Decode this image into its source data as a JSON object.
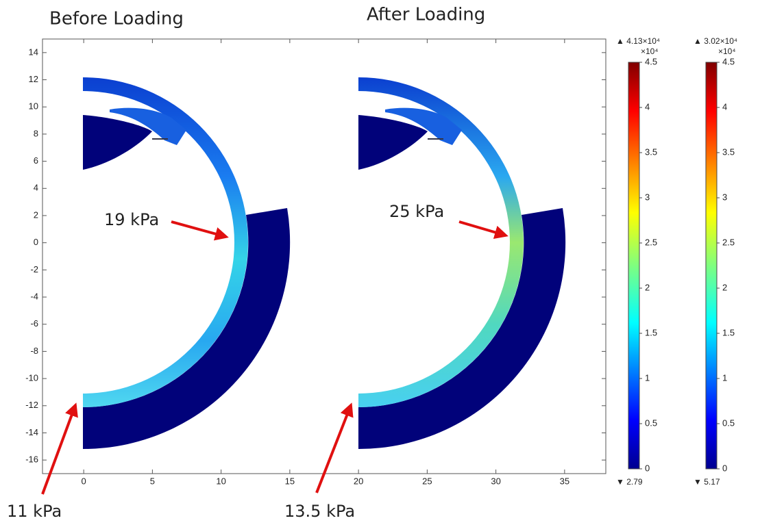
{
  "chart_data": {
    "type": "contour",
    "titles": [
      "Before Loading",
      "After Loading"
    ],
    "xlim": [
      -3,
      38
    ],
    "ylim": [
      -17,
      15
    ],
    "xticks": [
      0,
      5,
      10,
      15,
      20,
      25,
      30,
      35
    ],
    "yticks": [
      -16,
      -14,
      -12,
      -10,
      -8,
      -6,
      -4,
      -2,
      0,
      2,
      4,
      6,
      8,
      10,
      12,
      14
    ],
    "annotations": [
      "19 kPa",
      "25 kPa",
      "11 kPa",
      "13.5 kPa"
    ],
    "colorbars": [
      {
        "max_label": "▲ 4.13×10⁴",
        "unit": "×10⁴",
        "min_label": "▼ 2.79",
        "range": [
          0,
          4.5
        ],
        "ticks": [
          0,
          0.5,
          1,
          1.5,
          2,
          2.5,
          3,
          3.5,
          4,
          4.5
        ]
      },
      {
        "max_label": "▲ 3.02×10⁴",
        "unit": "×10⁴",
        "min_label": "▼ 5.17",
        "range": [
          0,
          4.5
        ],
        "ticks": [
          0,
          0.5,
          1,
          1.5,
          2,
          2.5,
          3,
          3.5,
          4,
          4.5
        ]
      }
    ]
  }
}
